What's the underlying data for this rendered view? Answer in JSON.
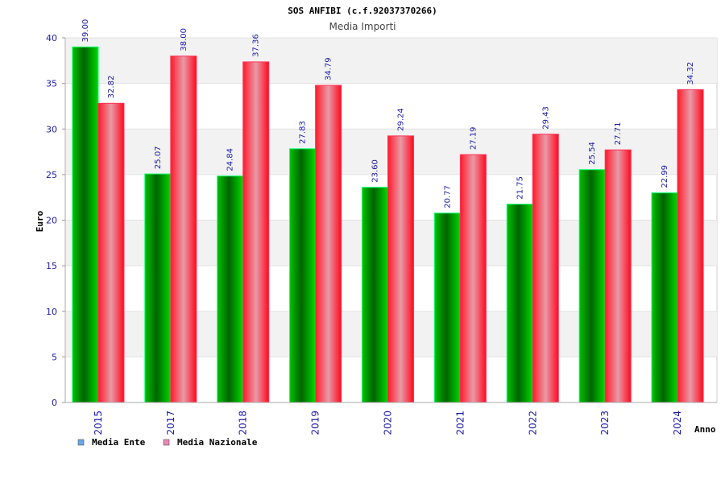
{
  "chart_data": {
    "type": "bar",
    "title": "SOS ANFIBI (c.f.92037370266)",
    "subtitle": "Media Importi",
    "xlabel": "Anno",
    "ylabel": "Euro",
    "ylim": [
      0,
      40
    ],
    "yticks": [
      "0",
      "5",
      "10",
      "15",
      "20",
      "25",
      "30",
      "35",
      "40"
    ],
    "grid": true,
    "legend_position": "bottom-left",
    "categories": [
      "2015",
      "2017",
      "2018",
      "2019",
      "2020",
      "2021",
      "2022",
      "2023",
      "2024"
    ],
    "series": [
      {
        "name": "Media Ente",
        "color": "#00b000",
        "legend_color": "#6aa6e8",
        "values": [
          39.0,
          25.07,
          24.84,
          27.83,
          23.6,
          20.77,
          21.75,
          25.54,
          22.99
        ],
        "labels": [
          "39.00",
          "25.07",
          "24.84",
          "27.83",
          "23.60",
          "20.77",
          "21.75",
          "25.54",
          "22.99"
        ]
      },
      {
        "name": "Media Nazionale",
        "color": "#ff1a2a",
        "legend_color": "#e888b8",
        "values": [
          32.82,
          38.0,
          37.36,
          34.79,
          29.24,
          27.19,
          29.43,
          27.71,
          34.32
        ],
        "labels": [
          "32.82",
          "38.00",
          "37.36",
          "34.79",
          "29.24",
          "27.19",
          "29.43",
          "27.71",
          "34.32"
        ]
      }
    ]
  }
}
